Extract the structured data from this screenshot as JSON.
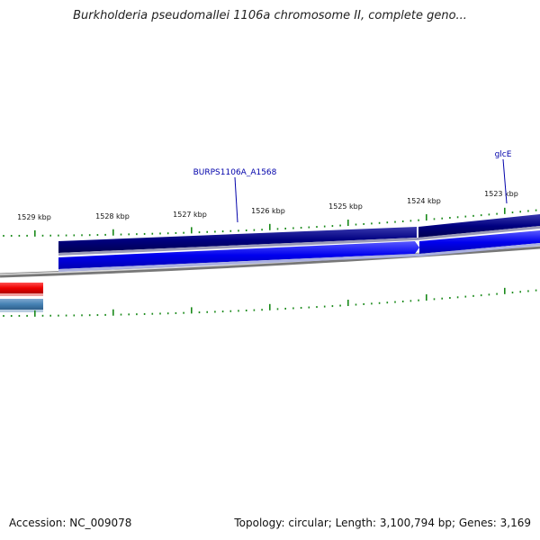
{
  "title": "Burkholderia pseudomallei 1106a chromosome II, complete geno...",
  "footer": {
    "accession": "Accession: NC_009078",
    "stats": "Topology: circular; Length: 3,100,794 bp; Genes: 3,169"
  },
  "ruler": {
    "labels": [
      "1529 kbp",
      "1528 kbp",
      "1527 kbp",
      "1526 kbp",
      "1525 kbp",
      "1524 kbp",
      "1523 kbp"
    ]
  },
  "genes": [
    {
      "label": "BURPS1106A_A1568"
    },
    {
      "label": "glcE"
    }
  ],
  "colors": {
    "forward_cds": "#0000dd",
    "reverse_cds": "#000080",
    "backbone": "#888888",
    "ticks": "#1a8a1a",
    "red_feature": "#ee0000",
    "steelblue_feature": "#4682b4",
    "gene_label": "#0000aa"
  }
}
